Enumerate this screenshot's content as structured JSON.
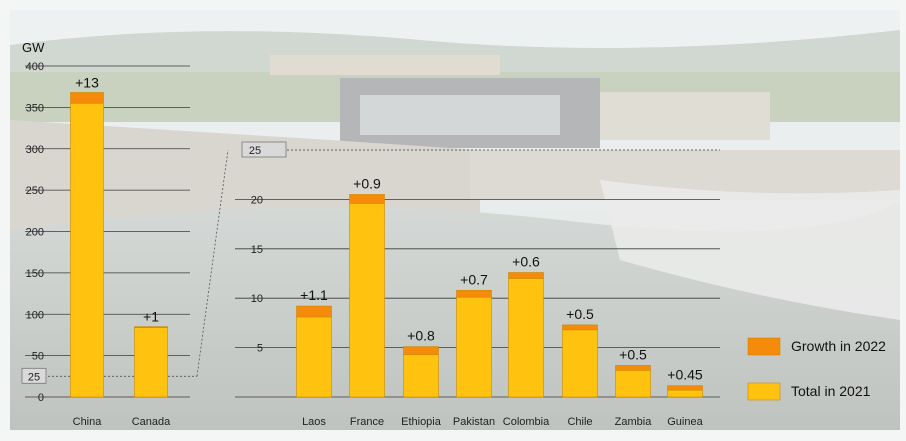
{
  "colors": {
    "growth": "#F58A0B",
    "total": "#FFC20E",
    "bar_edge": "#C98A00",
    "grid": "#3a3a3a"
  },
  "legend": {
    "growth_label": "Growth in 2022",
    "total_label": "Total in 2021"
  },
  "chart_data": [
    {
      "type": "bar",
      "stacked": true,
      "ylabel": "GW",
      "ylim": [
        0,
        400
      ],
      "yticks": [
        0,
        50,
        100,
        150,
        200,
        250,
        300,
        350,
        400
      ],
      "categories": [
        "China",
        "Canada"
      ],
      "series": [
        {
          "name": "Total in 2021",
          "values": [
            355,
            84
          ]
        },
        {
          "name": "Growth in 2022",
          "values": [
            13,
            1
          ]
        }
      ],
      "data_labels": [
        "+13",
        "+1"
      ],
      "zoom_marker": "25"
    },
    {
      "type": "bar",
      "stacked": true,
      "ylim": [
        0,
        25
      ],
      "yticks": [
        5,
        10,
        15,
        20
      ],
      "top_marker": "25",
      "categories": [
        "Laos",
        "France",
        "Ethiopia",
        "Pakistan",
        "Colombia",
        "Chile",
        "Zambia",
        "Guinea"
      ],
      "series": [
        {
          "name": "Total in 2021",
          "values": [
            8.1,
            19.6,
            4.3,
            10.1,
            12.0,
            6.8,
            2.7,
            0.7
          ]
        },
        {
          "name": "Growth in 2022",
          "values": [
            1.1,
            0.9,
            0.8,
            0.7,
            0.6,
            0.5,
            0.5,
            0.45
          ]
        }
      ],
      "data_labels": [
        "+1.1",
        "+0.9",
        "+0.8",
        "+0.7",
        "+0.6",
        "+0.5",
        "+0.5",
        "+0.45"
      ]
    }
  ]
}
